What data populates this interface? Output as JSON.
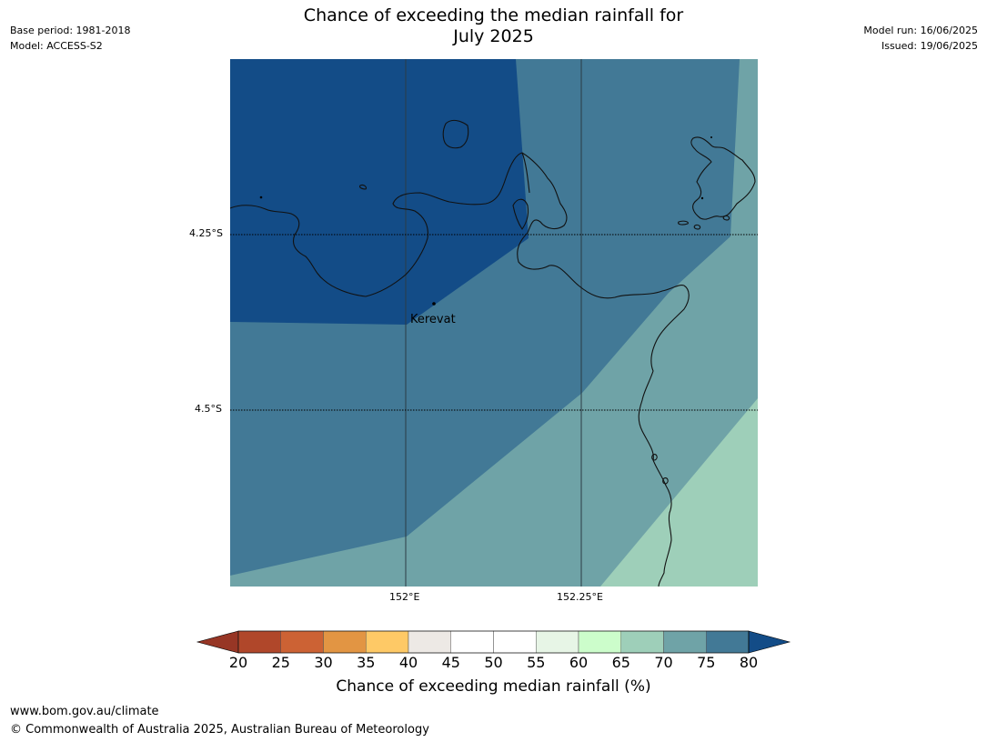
{
  "header": {
    "base_period": "Base period: 1981-2018",
    "model": "Model: ACCESS-S2",
    "title_line1": "Chance of exceeding the median rainfall for",
    "title_line2": "July 2025",
    "model_run": "Model run: 16/06/2025",
    "issued": "Issued: 19/06/2025"
  },
  "map": {
    "lat_labels": [
      "4.25°S",
      "4.5°S"
    ],
    "lon_labels": [
      "152°E",
      "152.25°E"
    ],
    "place": "Kerevat",
    "colors": {
      "c80": "#134c87",
      "c75": "#427996",
      "c70": "#6fa3a7",
      "c65": "#9ecfb9"
    }
  },
  "colorbar": {
    "title": "Chance of exceeding median rainfall (%)",
    "ticks": [
      "20",
      "25",
      "30",
      "35",
      "40",
      "45",
      "50",
      "55",
      "60",
      "65",
      "70",
      "75",
      "80"
    ],
    "colors": [
      "#b0472a",
      "#cc6234",
      "#e29543",
      "#fec966",
      "#ede9e5",
      "#ffffff",
      "#ffffff",
      "#e7f5e6",
      "#ccfdcb",
      "#9ecfb9",
      "#6fa3a7",
      "#427996"
    ],
    "under_color": "#973625",
    "over_color": "#134c87"
  },
  "footer": {
    "url": "www.bom.gov.au/climate",
    "copyright": "© Commonwealth of Australia 2025, Australian Bureau of Meteorology"
  }
}
